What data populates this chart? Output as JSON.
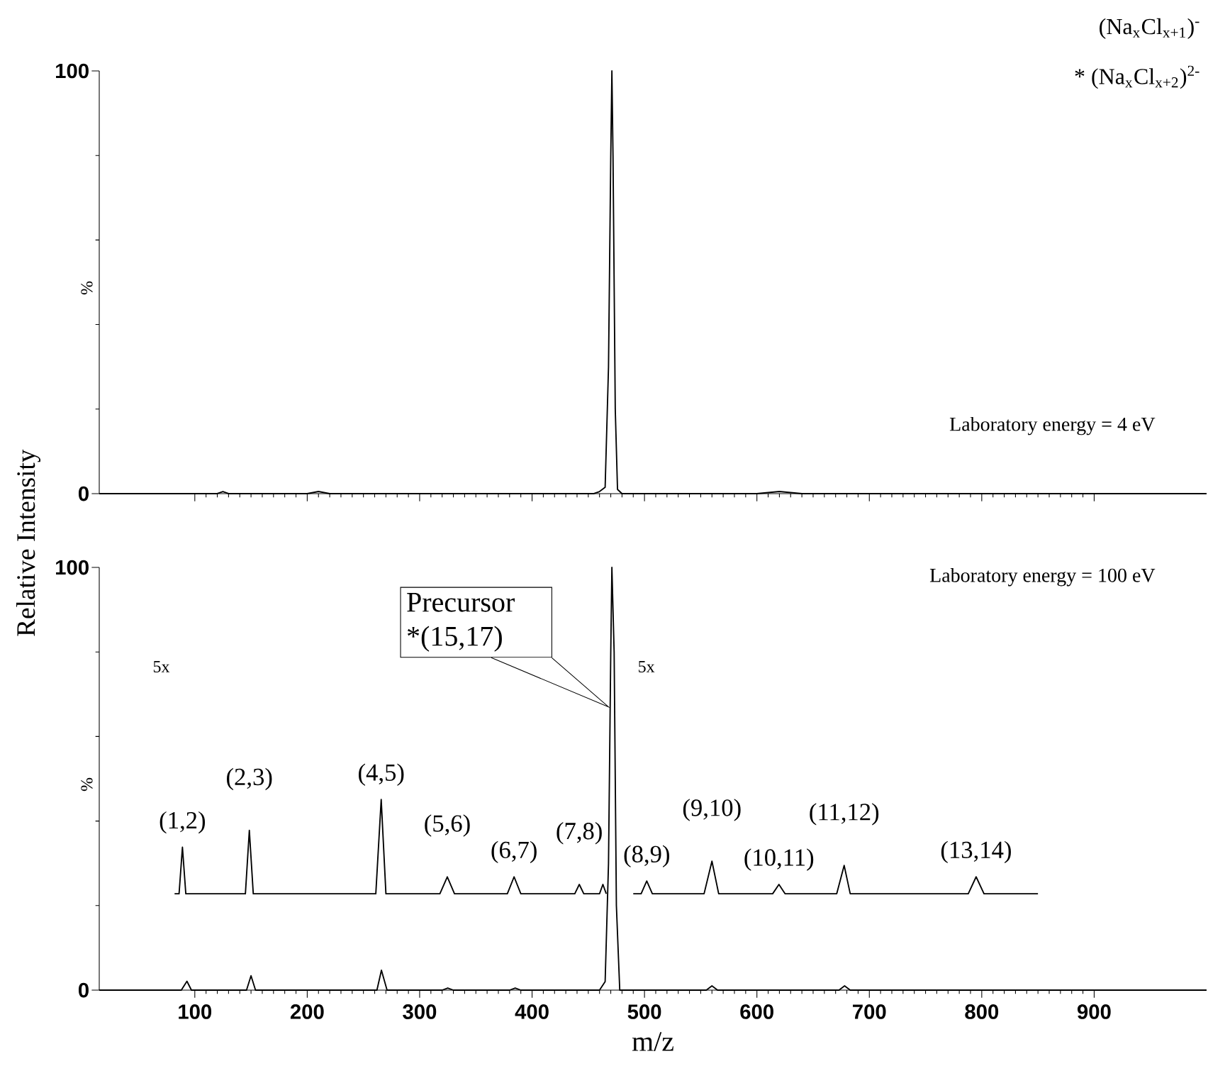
{
  "chart_data": [
    {
      "type": "line",
      "ylabel": "%",
      "xlim": [
        15,
        1000
      ],
      "ylim": [
        0,
        100
      ],
      "xticks": [
        100,
        200,
        300,
        400,
        500,
        600,
        700,
        800,
        900
      ],
      "yticks": [
        0,
        100
      ],
      "tick_labels": "y",
      "annotations": [
        "(Na$_{x}$Cl$_{x+1}$)$^{-}$",
        "* (Na$_{x}$Cl$_{x+2}$)$^{2-}$",
        "Laboratory energy = 4 eV",
        "Relative Intensity"
      ],
      "series": [
        {
          "color": "#000000",
          "x": [
            15,
            120,
            125,
            130,
            200,
            210,
            220,
            240,
            440,
            455,
            460,
            465,
            468,
            470,
            471,
            472,
            474,
            476,
            480,
            600,
            620,
            640,
            1000
          ],
          "values": [
            0,
            0,
            0.5,
            0,
            0,
            0.5,
            0,
            0,
            0,
            0,
            0.5,
            1.5,
            30,
            80,
            100,
            80,
            20,
            1,
            0,
            0,
            0.5,
            0,
            0
          ]
        }
      ]
    },
    {
      "type": "line",
      "xlabel": "m/z",
      "ylabel": "%",
      "xlim": [
        15,
        1000
      ],
      "ylim": [
        0,
        100
      ],
      "xticks": [
        100,
        200,
        300,
        400,
        500,
        600,
        700,
        800,
        900
      ],
      "yticks": [
        0,
        100
      ],
      "annotations": [
        "Laboratory energy = 100 eV",
        "5x",
        "5x",
        {
          "text": "Precursor *(15,17)",
          "x": 468,
          "y": 67
        },
        {
          "text": "(1,2)",
          "x": 89,
          "y": 33.8
        },
        {
          "text": "(2,3)",
          "x": 148.5,
          "y": 37.8
        },
        {
          "text": "(4,5)",
          "x": 265.8,
          "y": 45.1
        },
        {
          "text": "(5,6)",
          "x": 324.6,
          "y": 26.8
        },
        {
          "text": "(6,7)",
          "x": 384,
          "y": 26.8
        },
        {
          "text": "(7,8)",
          "x": 442,
          "y": 25
        },
        {
          "text": "(8,9)",
          "x": 502,
          "y": 25.8
        },
        {
          "text": "(9,10)",
          "x": 560,
          "y": 30.5
        },
        {
          "text": "(10,11)",
          "x": 619.6,
          "y": 25
        },
        {
          "text": "(11,12)",
          "x": 677.6,
          "y": 29.5
        },
        {
          "text": "(13,14)",
          "x": 795,
          "y": 26.8
        }
      ],
      "series": [
        {
          "color": "#000000",
          "x": [
            15,
            88,
            93,
            97,
            146,
            150,
            154,
            262,
            266,
            271,
            320,
            325,
            330,
            380,
            385,
            390,
            460,
            465,
            468,
            470,
            471,
            473,
            475,
            478,
            555,
            560,
            565,
            673,
            678,
            683,
            1000
          ],
          "values": [
            0,
            0,
            2.1,
            0,
            0,
            3.4,
            0,
            0,
            4.7,
            0,
            0,
            0.5,
            0,
            0,
            0.5,
            0,
            0,
            2,
            30,
            80,
            100,
            80,
            20,
            0,
            0,
            1,
            0,
            0,
            1,
            0,
            0
          ]
        },
        {
          "color": "#000000",
          "x": [
            82,
            86,
            89,
            92,
            145,
            148.5,
            152,
            261,
            265.8,
            270,
            318,
            324.6,
            331,
            378,
            384,
            390,
            438,
            442,
            446,
            460,
            463,
            466,
            478,
            490,
            497,
            502,
            507,
            553,
            560,
            566,
            614,
            619.6,
            625,
            671,
            677.6,
            683,
            788,
            795,
            802,
            850
          ],
          "values": [
            22.8,
            22.8,
            33.8,
            22.8,
            22.8,
            37.8,
            22.8,
            22.8,
            45.1,
            22.8,
            22.8,
            26.8,
            22.8,
            22.8,
            26.8,
            22.8,
            22.8,
            25,
            22.8,
            22.8,
            25,
            22.8,
            null,
            22.8,
            22.8,
            25.8,
            22.8,
            22.8,
            30.5,
            22.8,
            22.8,
            25,
            22.8,
            22.8,
            29.5,
            22.8,
            22.8,
            26.8,
            22.8,
            22.8
          ]
        }
      ]
    }
  ]
}
